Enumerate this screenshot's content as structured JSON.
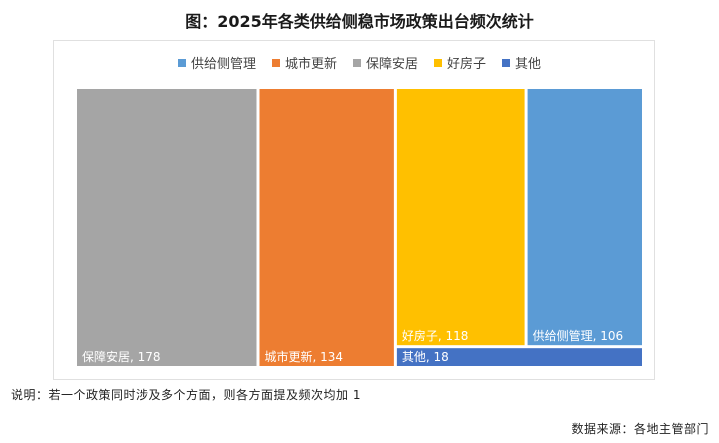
{
  "title": "图：2025年各类供给侧稳市场政策出台频次统计",
  "note": "说明：若一个政策同时涉及多个方面，则各方面提及频次均加 1",
  "source": "数据来源：各地主管部门",
  "legend": [
    {
      "label": "供给侧管理",
      "color": "#5b9bd5"
    },
    {
      "label": "城市更新",
      "color": "#ed7d31"
    },
    {
      "label": "保障安居",
      "color": "#a5a5a5"
    },
    {
      "label": "好房子",
      "color": "#ffc000"
    },
    {
      "label": "其他",
      "color": "#4472c4"
    }
  ],
  "chart_data": {
    "type": "treemap",
    "title": "图：2025年各类供给侧稳市场政策出台频次统计",
    "legend_position": "top",
    "items": [
      {
        "name": "保障安居",
        "value": 178,
        "label": "保障安居, 178",
        "color": "#a5a5a5"
      },
      {
        "name": "城市更新",
        "value": 134,
        "label": "城市更新, 134",
        "color": "#ed7d31"
      },
      {
        "name": "好房子",
        "value": 118,
        "label": "好房子, 118",
        "color": "#ffc000"
      },
      {
        "name": "供给侧管理",
        "value": 106,
        "label": "供给侧管理, 106",
        "color": "#5b9bd5"
      },
      {
        "name": "其他",
        "value": 18,
        "label": "其他, 18",
        "color": "#4472c4"
      }
    ]
  }
}
